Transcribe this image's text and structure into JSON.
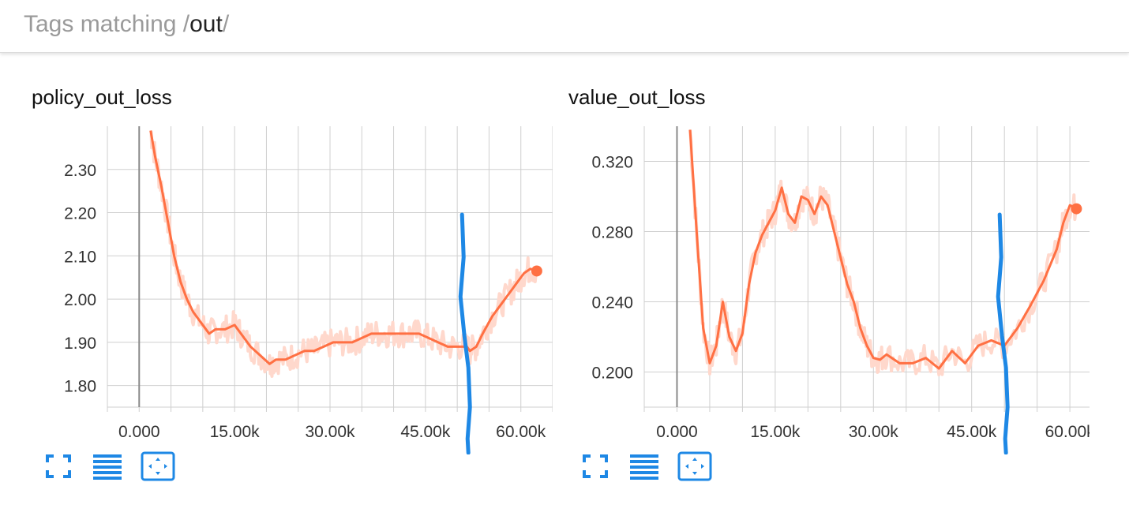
{
  "header": {
    "prefix": "Tags matching ",
    "regex_open": "/",
    "regex": "out",
    "regex_close": "/"
  },
  "colors": {
    "line": "#ff7043",
    "line_raw": "#ffd8cc",
    "grid": "#cfcfcf",
    "axis_zero": "#8a8a8a",
    "annotation": "#1e88e5",
    "icon": "#1e88e5"
  },
  "toolbar_icons": [
    "fullscreen-icon",
    "list-icon",
    "fit-domain-icon"
  ],
  "chart_data": [
    {
      "type": "line",
      "title": "policy_out_loss",
      "xlim": [
        -5000,
        65000
      ],
      "ylim": [
        1.75,
        2.4
      ],
      "x_ticks": [
        0,
        15000,
        30000,
        45000,
        60000
      ],
      "x_tick_labels": [
        "0.000",
        "15.00k",
        "30.00k",
        "45.00k",
        "60.00k"
      ],
      "y_ticks": [
        1.8,
        1.9,
        2.0,
        2.1,
        2.2,
        2.3
      ],
      "y_tick_labels": [
        "1.80",
        "1.90",
        "2.00",
        "2.10",
        "2.20",
        "2.30"
      ],
      "grid": true,
      "series": [
        {
          "x": [
            1800,
            2500,
            3500,
            4500,
            5500,
            6500,
            7500,
            8500,
            10000,
            11000,
            12000,
            13500,
            15000,
            16000,
            17500,
            19000,
            20500,
            21500,
            23000,
            24500,
            26000,
            27500,
            29000,
            30500,
            32000,
            33500,
            35000,
            36500,
            38000,
            39500,
            41000,
            42500,
            44000,
            45500,
            47000,
            48500,
            50000,
            51500,
            52000,
            53000,
            54000,
            55500,
            57000,
            58500,
            59500,
            60500,
            61500,
            62500
          ],
          "y": [
            2.39,
            2.33,
            2.26,
            2.18,
            2.1,
            2.04,
            2.0,
            1.97,
            1.94,
            1.92,
            1.93,
            1.93,
            1.94,
            1.92,
            1.89,
            1.87,
            1.85,
            1.86,
            1.86,
            1.87,
            1.88,
            1.88,
            1.89,
            1.9,
            1.9,
            1.9,
            1.91,
            1.92,
            1.92,
            1.92,
            1.92,
            1.92,
            1.92,
            1.91,
            1.9,
            1.89,
            1.89,
            1.89,
            1.88,
            1.89,
            1.92,
            1.96,
            1.99,
            2.02,
            2.04,
            2.06,
            2.07,
            2.065
          ]
        }
      ],
      "annotation_x": 51500
    },
    {
      "type": "line",
      "title": "value_out_loss",
      "xlim": [
        -5000,
        63000
      ],
      "ylim": [
        0.18,
        0.34
      ],
      "x_ticks": [
        0,
        15000,
        30000,
        45000,
        60000
      ],
      "x_tick_labels": [
        "0.000",
        "15.00k",
        "30.00k",
        "45.00k",
        "60.00k"
      ],
      "y_ticks": [
        0.2,
        0.24,
        0.28,
        0.32
      ],
      "y_tick_labels": [
        "0.200",
        "0.240",
        "0.280",
        "0.320"
      ],
      "grid": true,
      "series": [
        {
          "x": [
            2000,
            3000,
            4000,
            5000,
            6000,
            7000,
            8000,
            9000,
            10000,
            11000,
            12000,
            13000,
            14000,
            15000,
            16000,
            17000,
            18000,
            19000,
            20000,
            21000,
            22000,
            23000,
            24000,
            25000,
            26000,
            27000,
            28000,
            29000,
            30000,
            31000,
            32000,
            34000,
            36000,
            38000,
            40000,
            42000,
            44000,
            46000,
            48000,
            50000,
            52000,
            54000,
            56000,
            58000,
            59000,
            60000,
            61000
          ],
          "y": [
            0.338,
            0.28,
            0.225,
            0.205,
            0.215,
            0.24,
            0.22,
            0.212,
            0.222,
            0.25,
            0.268,
            0.278,
            0.285,
            0.292,
            0.305,
            0.29,
            0.285,
            0.3,
            0.298,
            0.29,
            0.3,
            0.295,
            0.28,
            0.265,
            0.25,
            0.24,
            0.225,
            0.215,
            0.208,
            0.207,
            0.21,
            0.205,
            0.205,
            0.208,
            0.202,
            0.212,
            0.205,
            0.215,
            0.218,
            0.215,
            0.225,
            0.238,
            0.252,
            0.27,
            0.285,
            0.295,
            0.293
          ]
        }
      ],
      "annotation_x": 50000
    }
  ]
}
